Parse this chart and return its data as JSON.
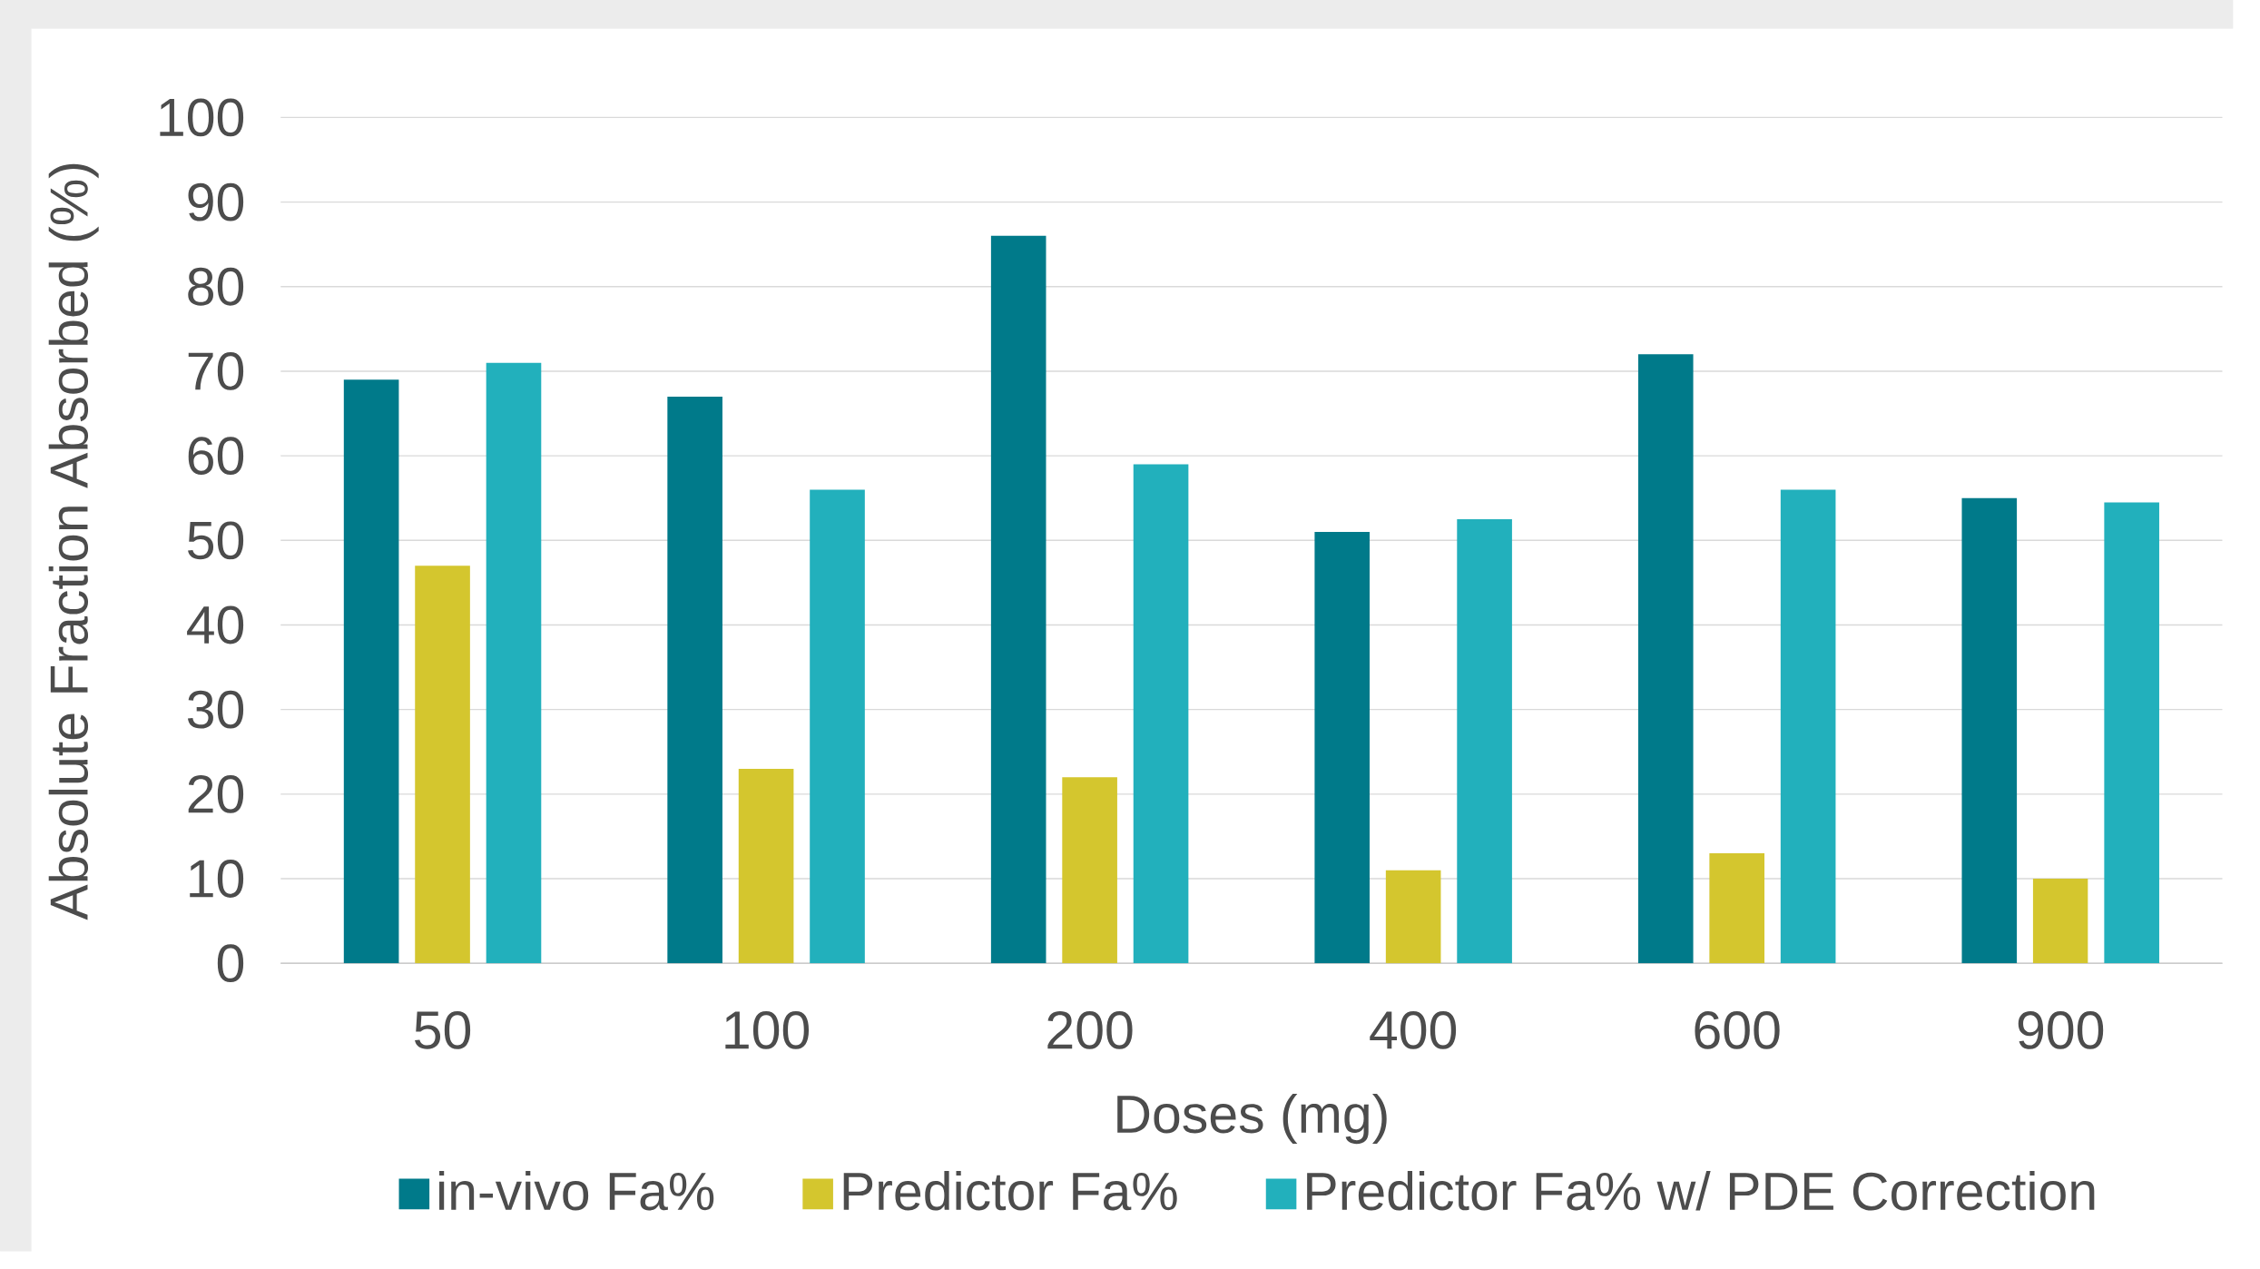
{
  "chart_data": {
    "type": "bar",
    "xlabel": "Doses (mg)",
    "ylabel": "Absolute Fraction Absorbed (%)",
    "categories": [
      "50",
      "100",
      "200",
      "400",
      "600",
      "900"
    ],
    "series": [
      {
        "name": "in-vivo Fa%",
        "color": "#007a8a",
        "values": [
          69,
          67,
          86,
          51,
          72,
          55
        ]
      },
      {
        "name": "Predictor Fa%",
        "color": "#d4c62e",
        "values": [
          47,
          23,
          22,
          11,
          13,
          10
        ]
      },
      {
        "name": "Predictor Fa% w/ PDE Correction",
        "color": "#22b0bc",
        "values": [
          71,
          56,
          59,
          52.5,
          56,
          54.5
        ]
      }
    ],
    "ylim": [
      0,
      100
    ],
    "yticks": [
      0,
      10,
      20,
      30,
      40,
      50,
      60,
      70,
      80,
      90,
      100
    ],
    "grid": "y",
    "legend": "bottom"
  }
}
